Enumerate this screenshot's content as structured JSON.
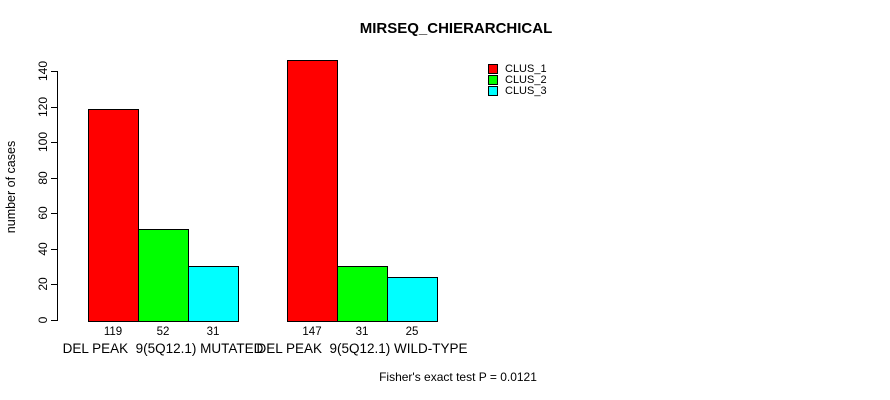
{
  "chart_data": {
    "type": "bar",
    "title": "MIRSEQ_CHIERARCHICAL",
    "ylabel": "number of cases",
    "xlabel": "",
    "footer": "Fisher's exact test P = 0.0121",
    "categories": [
      "DEL PEAK  9(5Q12.1) MUTATED",
      "DEL PEAK  9(5Q12.1) WILD-TYPE"
    ],
    "series": [
      {
        "name": "CLUS_1",
        "color": "#ff0000",
        "values": [
          119,
          147
        ]
      },
      {
        "name": "CLUS_2",
        "color": "#00ff00",
        "values": [
          52,
          31
        ]
      },
      {
        "name": "CLUS_3",
        "color": "#00ffff",
        "values": [
          31,
          25
        ]
      }
    ],
    "bar_value_labels": [
      [
        119,
        52,
        31
      ],
      [
        147,
        31,
        25
      ]
    ],
    "ylim": [
      0,
      140
    ],
    "yticks": [
      0,
      20,
      40,
      60,
      80,
      100,
      120,
      140
    ],
    "grid": false,
    "legend_position": "top-right",
    "bar_border_color": "#000000",
    "background_color": "#ffffff",
    "text_color": "#000000"
  }
}
